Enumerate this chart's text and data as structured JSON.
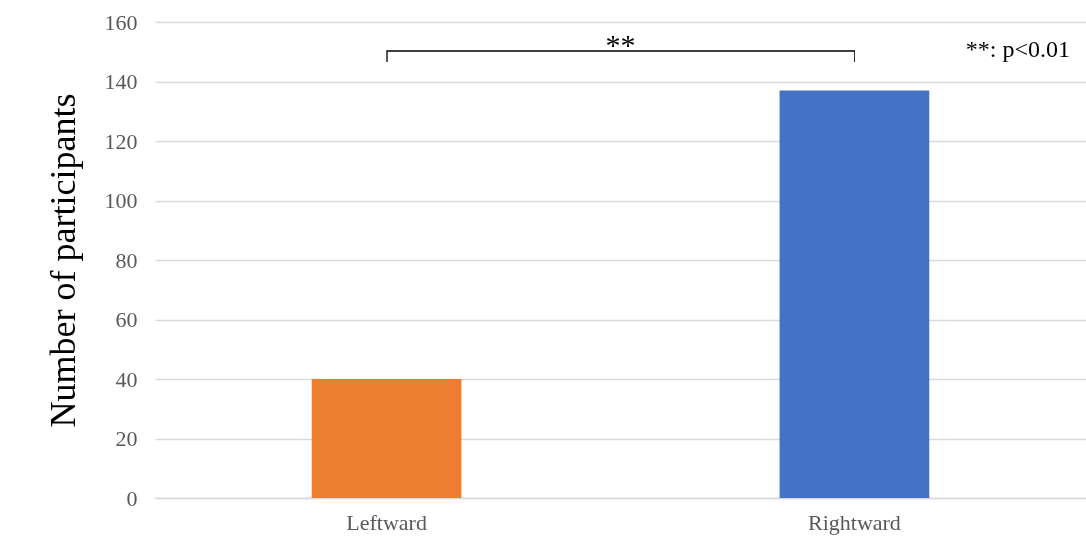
{
  "chart_data": {
    "type": "bar",
    "ylabel": "Number of participants",
    "categories": [
      "Leftward",
      "Rightward"
    ],
    "values": [
      40,
      137
    ],
    "colors": [
      "#ed7d31",
      "#4472c4"
    ],
    "ylim": [
      0,
      160
    ],
    "yticks": [
      0,
      20,
      40,
      60,
      80,
      100,
      120,
      140,
      160
    ],
    "grid": "y",
    "legend": false,
    "annotations": [
      "**",
      "**: p<0.01"
    ]
  }
}
